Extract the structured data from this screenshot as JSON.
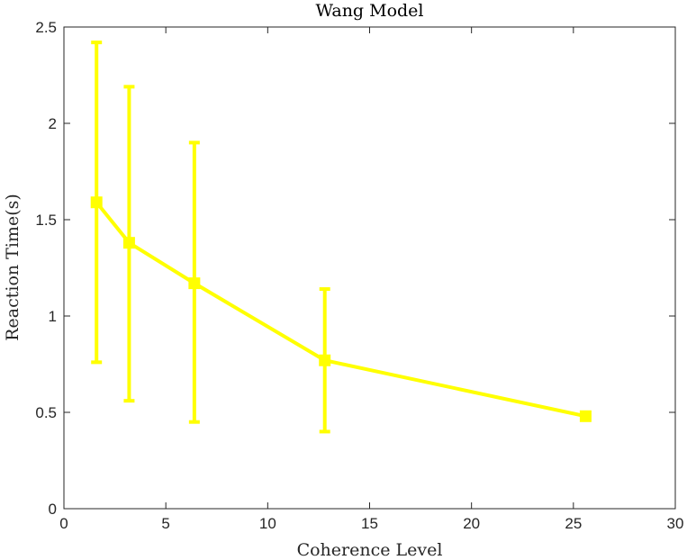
{
  "chart_data": {
    "type": "line",
    "title": "Wang Model",
    "xlabel": "Coherence Level",
    "ylabel": "Reaction Time(s)",
    "xlim": [
      0,
      30
    ],
    "ylim": [
      0,
      2.5
    ],
    "xticks": [
      0,
      5,
      10,
      15,
      20,
      25,
      30
    ],
    "yticks": [
      0,
      0.5,
      1,
      1.5,
      2,
      2.5
    ],
    "xtick_labels": [
      "0",
      "5",
      "10",
      "15",
      "20",
      "25",
      "30"
    ],
    "ytick_labels": [
      "0",
      "0.5",
      "1",
      "1.5",
      "2",
      "2.5"
    ],
    "grid": false,
    "legend": "none",
    "color": "#ffff00",
    "marker": "square",
    "series": [
      {
        "x": [
          1.6,
          3.2,
          6.4,
          12.8,
          25.6
        ],
        "y": [
          1.59,
          1.38,
          1.17,
          0.77,
          0.48
        ],
        "err_low": [
          0.76,
          0.56,
          0.45,
          0.4,
          0.48
        ],
        "err_high": [
          2.42,
          2.19,
          1.9,
          1.14,
          0.48
        ]
      }
    ]
  }
}
